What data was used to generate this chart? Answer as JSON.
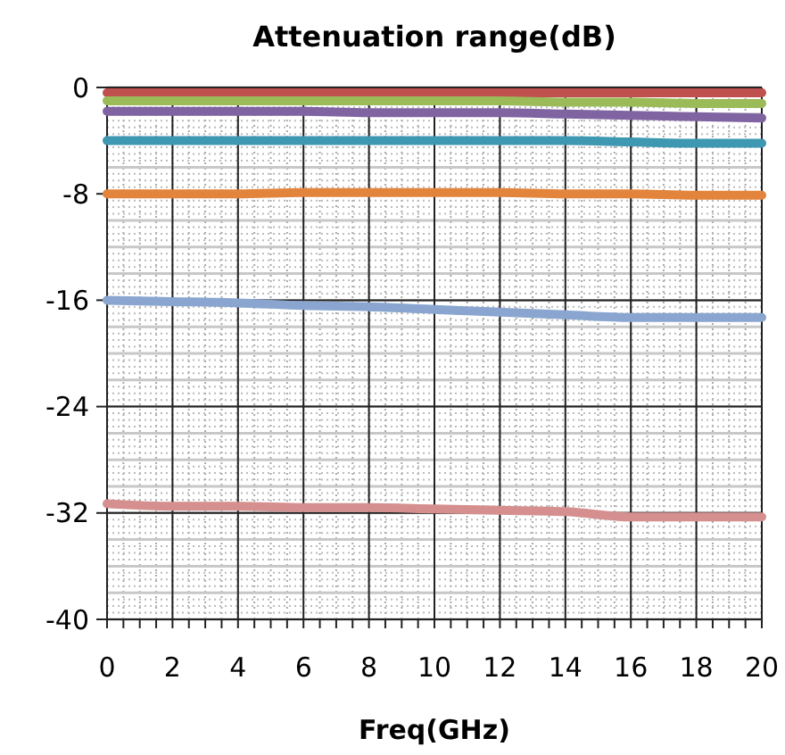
{
  "chart_data": {
    "type": "line",
    "title": "Attenuation range(dB)",
    "xlabel": "Freq(GHz)",
    "x": [
      0,
      2,
      4,
      6,
      8,
      10,
      12,
      14,
      16,
      18,
      20
    ],
    "series": [
      {
        "color": "#c0504d",
        "values": [
          -0.4,
          -0.4,
          -0.4,
          -0.4,
          -0.4,
          -0.4,
          -0.4,
          -0.4,
          -0.4,
          -0.4,
          -0.4
        ]
      },
      {
        "color": "#9bbb59",
        "values": [
          -1,
          -1,
          -1,
          -1,
          -1,
          -1,
          -1,
          -1.1,
          -1.1,
          -1.2,
          -1.2
        ]
      },
      {
        "color": "#8064a2",
        "values": [
          -1.8,
          -1.8,
          -1.8,
          -1.8,
          -1.9,
          -1.9,
          -1.9,
          -2,
          -2.1,
          -2.2,
          -2.3
        ]
      },
      {
        "color": "#3e98b2",
        "values": [
          -4,
          -4,
          -4,
          -4,
          -4,
          -4,
          -4,
          -4,
          -4.1,
          -4.2,
          -4.2
        ]
      },
      {
        "color": "#e3843c",
        "values": [
          -8,
          -8,
          -8,
          -7.9,
          -7.9,
          -7.9,
          -7.9,
          -8,
          -8,
          -8.1,
          -8.1
        ]
      },
      {
        "color": "#8aa6d0",
        "values": [
          -16,
          -16.1,
          -16.2,
          -16.4,
          -16.5,
          -16.7,
          -16.9,
          -17.1,
          -17.3,
          -17.3,
          -17.3
        ]
      },
      {
        "color": "#d48f8e",
        "values": [
          -31.3,
          -31.5,
          -31.5,
          -31.6,
          -31.6,
          -31.7,
          -31.8,
          -31.9,
          -32.3,
          -32.3,
          -32.3
        ]
      }
    ],
    "xlim": [
      0,
      20
    ],
    "xticks": [
      0,
      2,
      4,
      6,
      8,
      10,
      12,
      14,
      16,
      18,
      20
    ],
    "ylim": [
      -40,
      0
    ],
    "yticks": [
      -40,
      -32,
      -24,
      -16,
      -8,
      0
    ],
    "grid": true,
    "marker": "none",
    "line_style": "solid"
  }
}
